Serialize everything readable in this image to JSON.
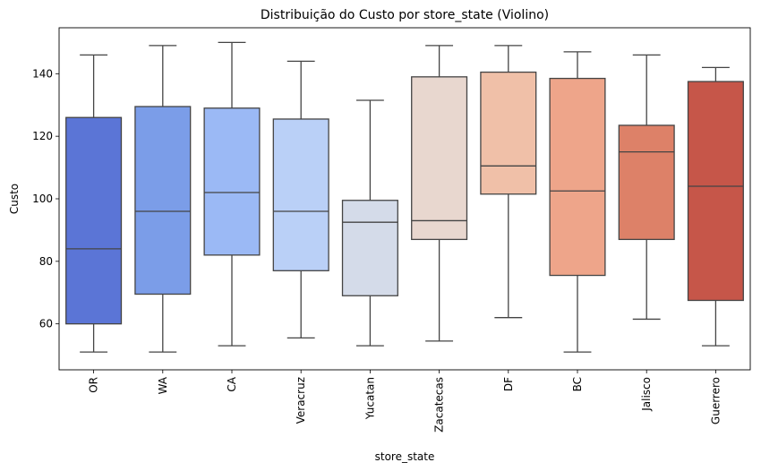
{
  "chart_data": {
    "type": "box",
    "title": "Distribuição do Custo por store_state (Violino)",
    "xlabel": "store_state",
    "ylabel": "Custo",
    "ylim": [
      45.3,
      154.7
    ],
    "yticks": [
      60,
      80,
      100,
      120,
      140
    ],
    "grid": false,
    "categories": [
      "OR",
      "WA",
      "CA",
      "Veracruz",
      "Yucatan",
      "Zacatecas",
      "DF",
      "BC",
      "Jalisco",
      "Guerrero"
    ],
    "colors": [
      "#5b75d6",
      "#7b9de8",
      "#9bb9f5",
      "#bad0f7",
      "#d4dbe9",
      "#e8d7cf",
      "#f0c0a8",
      "#eea58a",
      "#dd8168",
      "#c65649"
    ],
    "boxes": [
      {
        "min": 51,
        "q1": 60,
        "median": 84,
        "q3": 126,
        "max": 146
      },
      {
        "min": 51,
        "q1": 69.5,
        "median": 96,
        "q3": 129.5,
        "max": 149
      },
      {
        "min": 53,
        "q1": 82,
        "median": 102,
        "q3": 129,
        "max": 150
      },
      {
        "min": 55.5,
        "q1": 77,
        "median": 96,
        "q3": 125.5,
        "max": 144
      },
      {
        "min": 53,
        "q1": 69,
        "median": 92.5,
        "q3": 99.5,
        "max": 131.5
      },
      {
        "min": 54.5,
        "q1": 87,
        "median": 93,
        "q3": 139,
        "max": 149
      },
      {
        "min": 62,
        "q1": 101.5,
        "median": 110.5,
        "q3": 140.5,
        "max": 149
      },
      {
        "min": 51,
        "q1": 75.5,
        "median": 102.5,
        "q3": 138.5,
        "max": 147
      },
      {
        "min": 61.5,
        "q1": 87,
        "median": 115,
        "q3": 123.5,
        "max": 146
      },
      {
        "min": 53,
        "q1": 67.5,
        "median": 104,
        "q3": 137.5,
        "max": 142
      }
    ]
  }
}
